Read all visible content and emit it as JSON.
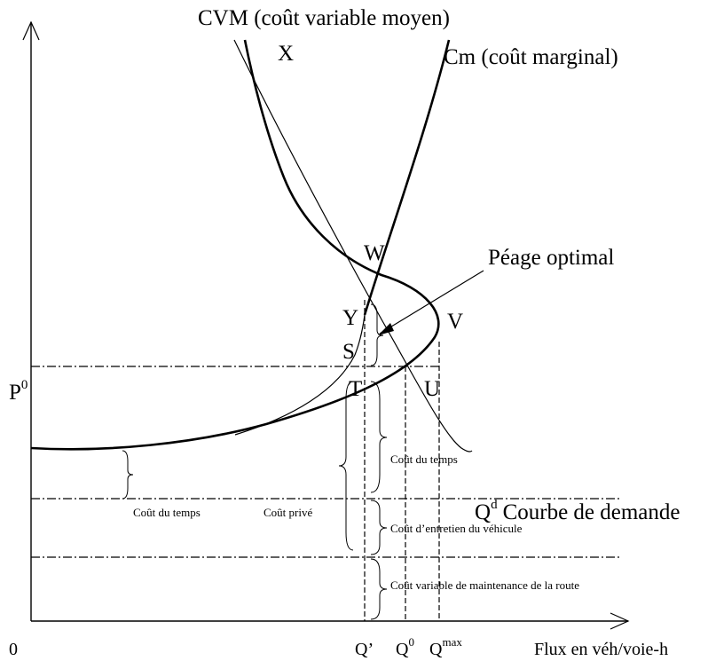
{
  "labels": {
    "cvm": "CVM (coût variable moyen)",
    "cm": "Cm (coût marginal)",
    "x": "X",
    "w": "W",
    "peage": "Péage optimal",
    "y": "Y",
    "v": "V",
    "s": "S",
    "t": "T",
    "u": "U",
    "p0": {
      "base": "P",
      "sup": "0"
    },
    "cout_temps_left": "Coût du temps",
    "cout_prive": "Coût privé",
    "cout_temps_right": "Coût du temps",
    "demande": {
      "base": "Q",
      "sup": "d",
      "text": "Courbe de demande"
    },
    "entretien": "Coût d’entretien du véhicule",
    "maintenance": "Coût variable de maintenance de la route",
    "origin": "0",
    "q_prime": "Q’",
    "q0": {
      "base": "Q",
      "sup": "0"
    },
    "qmax": {
      "base": "Q",
      "sup": "max"
    },
    "x_axis": "Flux en véh/voie-h"
  }
}
